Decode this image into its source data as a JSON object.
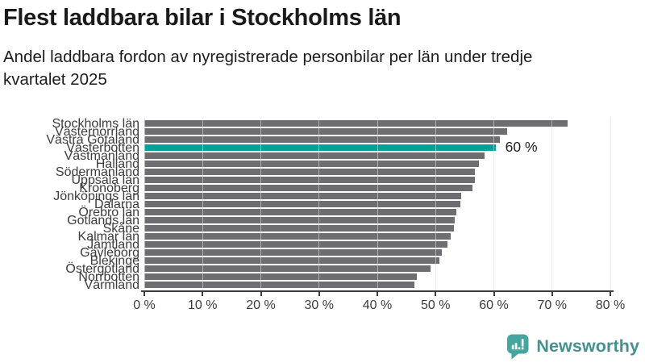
{
  "header": {
    "title": "Flest laddbara bilar i Stockholms län",
    "subtitle": "Andel laddbara fordon av nyregistrerade personbilar per län under tredje kvartalet 2025"
  },
  "chart_data": {
    "type": "bar",
    "orientation": "horizontal",
    "title": "Flest laddbara bilar i Stockholms län",
    "subtitle": "Andel laddbara fordon av nyregistrerade personbilar per län under tredje kvartalet 2025",
    "categories": [
      "Stockholms län",
      "Västernorrland",
      "Västra Götaland",
      "Västerbotten",
      "Västmanland",
      "Halland",
      "Södermanland",
      "Uppsala län",
      "Kronoberg",
      "Jönköpings län",
      "Dalarna",
      "Örebro län",
      "Gotlands län",
      "Skåne",
      "Kalmar län",
      "Jämtland",
      "Gävleborg",
      "Blekinge",
      "Östergötland",
      "Norrbotten",
      "Värmland"
    ],
    "values": [
      72.7,
      62.3,
      61.0,
      60.3,
      58.4,
      57.5,
      56.7,
      56.7,
      56.3,
      54.4,
      54.2,
      53.6,
      53.3,
      53.2,
      52.6,
      52.1,
      51.1,
      50.6,
      49.2,
      46.8,
      46.4
    ],
    "unit": "%",
    "xlim": [
      0,
      80
    ],
    "tick_step": 10,
    "x_tick_labels": [
      "0 %",
      "10 %",
      "20 %",
      "30 %",
      "40 %",
      "50 %",
      "60 %",
      "70 %",
      "80 %"
    ],
    "grid": true,
    "legend": "none",
    "highlight": {
      "index": 3,
      "category": "Västerbotten",
      "label": "60 %"
    },
    "colors": {
      "bar": "#6d6d72",
      "highlight": "#00a199",
      "grid": "#dcdcdc",
      "axis": "#3c3c3c",
      "tick_text": "#3c3c3c"
    }
  },
  "footer": {
    "brand": "Newsworthy",
    "logo_icon": "newsworthy-logo-icon",
    "icon_color": "#44a69e",
    "text_color": "#44918d"
  }
}
